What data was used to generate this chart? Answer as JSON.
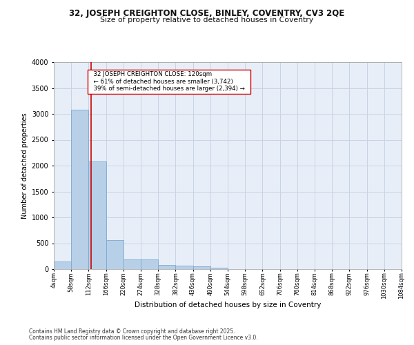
{
  "title1": "32, JOSEPH CREIGHTON CLOSE, BINLEY, COVENTRY, CV3 2QE",
  "title2": "Size of property relative to detached houses in Coventry",
  "xlabel": "Distribution of detached houses by size in Coventry",
  "ylabel": "Number of detached properties",
  "annotation_line1": "  32 JOSEPH CREIGHTON CLOSE: 120sqm  ",
  "annotation_line2": "  ← 61% of detached houses are smaller (3,742)  ",
  "annotation_line3": "  39% of semi-detached houses are larger (2,394) →  ",
  "bin_edges": [
    4,
    58,
    112,
    166,
    220,
    274,
    328,
    382,
    436,
    490,
    544,
    598,
    652,
    706,
    760,
    814,
    868,
    922,
    976,
    1030,
    1084
  ],
  "bar_heights": [
    150,
    3080,
    2080,
    560,
    190,
    190,
    80,
    70,
    50,
    30,
    0,
    0,
    0,
    0,
    0,
    0,
    0,
    0,
    0,
    0
  ],
  "bar_color": "#b8cfe8",
  "bar_edge_color": "#7aaad0",
  "vline_x": 120,
  "vline_color": "#cc0000",
  "grid_color": "#c8d4e4",
  "bg_color": "#e8eef8",
  "ylim": [
    0,
    4000
  ],
  "yticks": [
    0,
    500,
    1000,
    1500,
    2000,
    2500,
    3000,
    3500,
    4000
  ],
  "footnote1": "Contains HM Land Registry data © Crown copyright and database right 2025.",
  "footnote2": "Contains public sector information licensed under the Open Government Licence v3.0."
}
